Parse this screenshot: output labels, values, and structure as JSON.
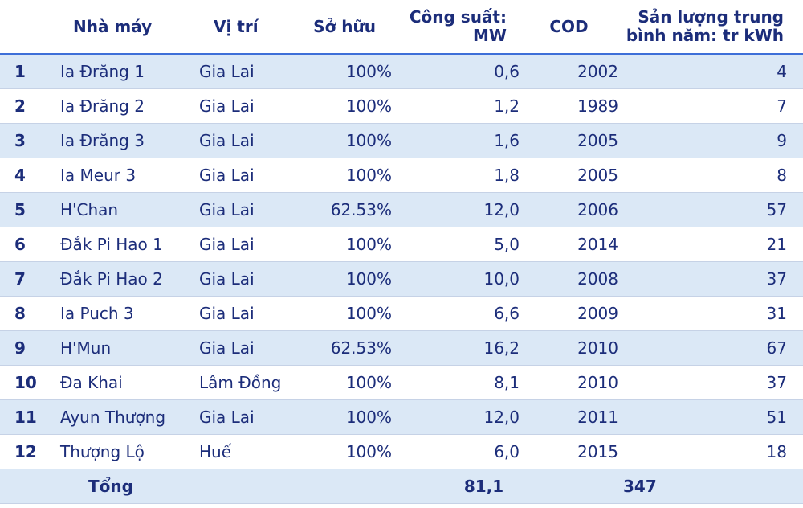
{
  "headers": {
    "plant": "Nhà máy",
    "location": "Vị trí",
    "ownership": "Sở hữu",
    "capacity_line1": "Công suất:",
    "capacity_line2": "MW",
    "cod": "COD",
    "output_line1": "Sản lượng trung",
    "output_line2": "bình năm: tr kWh"
  },
  "rows": [
    {
      "idx": "1",
      "name": "Ia Đrăng 1",
      "location": "Gia Lai",
      "ownership": "100%",
      "capacity": "0,6",
      "cod": "2002",
      "output": "4"
    },
    {
      "idx": "2",
      "name": "Ia Đrăng 2",
      "location": "Gia Lai",
      "ownership": "100%",
      "capacity": "1,2",
      "cod": "1989",
      "output": "7"
    },
    {
      "idx": "3",
      "name": "Ia Đrăng 3",
      "location": "Gia Lai",
      "ownership": "100%",
      "capacity": "1,6",
      "cod": "2005",
      "output": "9"
    },
    {
      "idx": "4",
      "name": "Ia Meur 3",
      "location": "Gia Lai",
      "ownership": "100%",
      "capacity": "1,8",
      "cod": "2005",
      "output": "8"
    },
    {
      "idx": "5",
      "name": "H'Chan",
      "location": "Gia Lai",
      "ownership": "62.53%",
      "capacity": "12,0",
      "cod": "2006",
      "output": "57"
    },
    {
      "idx": "6",
      "name": "Đắk Pi Hao 1",
      "location": "Gia Lai",
      "ownership": "100%",
      "capacity": "5,0",
      "cod": "2014",
      "output": "21"
    },
    {
      "idx": "7",
      "name": "Đắk Pi Hao 2",
      "location": "Gia Lai",
      "ownership": "100%",
      "capacity": "10,0",
      "cod": "2008",
      "output": "37"
    },
    {
      "idx": "8",
      "name": "Ia Puch 3",
      "location": "Gia Lai",
      "ownership": "100%",
      "capacity": "6,6",
      "cod": "2009",
      "output": "31"
    },
    {
      "idx": "9",
      "name": "H'Mun",
      "location": "Gia Lai",
      "ownership": "62.53%",
      "capacity": "16,2",
      "cod": "2010",
      "output": "67"
    },
    {
      "idx": "10",
      "name": "Đa Khai",
      "location": "Lâm Đồng",
      "ownership": "100%",
      "capacity": "8,1",
      "cod": "2010",
      "output": "37"
    },
    {
      "idx": "11",
      "name": "Ayun Thượng",
      "location": "Gia Lai",
      "ownership": "100%",
      "capacity": "12,0",
      "cod": "2011",
      "output": "51"
    },
    {
      "idx": "12",
      "name": "Thượng Lộ",
      "location": "Huế",
      "ownership": "100%",
      "capacity": "6,0",
      "cod": "2015",
      "output": "18"
    }
  ],
  "total": {
    "label": "Tổng",
    "capacity": "81,1",
    "output": "347"
  }
}
